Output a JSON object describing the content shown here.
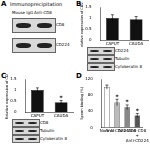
{
  "panel_labels": [
    "A",
    "B",
    "C",
    "D"
  ],
  "blot_a": {
    "title": "Immunoprecipitation",
    "columns": [
      "Mouse IgG",
      "Anti-CD8"
    ],
    "rows": [
      "CD8",
      "CD224"
    ]
  },
  "blots_b": [
    "CD224",
    "Tubulin",
    "Cytokeratin 8"
  ],
  "blots_c": [
    "CD8",
    "Tubulin",
    "Cytokeratin 8"
  ],
  "chart_data": [
    {
      "type": "bar",
      "y_label": "Relative expression of CD224",
      "categories": [
        "CAPUT",
        "CAUDA"
      ],
      "values": [
        1.0,
        0.95
      ],
      "errors": [
        0.15,
        0.12
      ],
      "colors": [
        "#111111",
        "#111111"
      ],
      "ylim": [
        0,
        1.5
      ],
      "yticks": [
        0,
        0.5,
        1,
        1.5
      ],
      "grid": false,
      "annotations": []
    },
    {
      "type": "bar",
      "y_label": "Relative expression of CD8",
      "categories": [
        "CAPUT",
        "CAUDA"
      ],
      "values": [
        1.0,
        0.45
      ],
      "errors": [
        0.1,
        0.08
      ],
      "colors": [
        "#111111",
        "#111111"
      ],
      "ylim": [
        0,
        1.5
      ],
      "yticks": [
        0,
        0.5,
        1,
        1.5
      ],
      "grid": false,
      "annotations": [
        {
          "category": "CAUDA",
          "text": "*"
        }
      ]
    },
    {
      "type": "bar",
      "y_label": "Sperm binding (%)",
      "categories": [
        "Normal",
        "Anti-CD224",
        "Anti-CD8",
        "Anti-CD8 + Anti-CD224"
      ],
      "values": [
        100,
        62,
        50,
        30
      ],
      "errors": [
        5,
        8,
        6,
        5
      ],
      "colors": [
        "#ffffff",
        "#bbbbbb",
        "#888888",
        "#555555"
      ],
      "ylim": [
        0,
        120
      ],
      "yticks": [
        0,
        40,
        80,
        120
      ],
      "grid": false,
      "annotations": [
        {
          "category": "Anti-CD224",
          "text": "*"
        },
        {
          "category": "Anti-CD8",
          "text": "*"
        },
        {
          "category": "Anti-CD8 + Anti-CD224",
          "text": "*"
        }
      ]
    }
  ]
}
